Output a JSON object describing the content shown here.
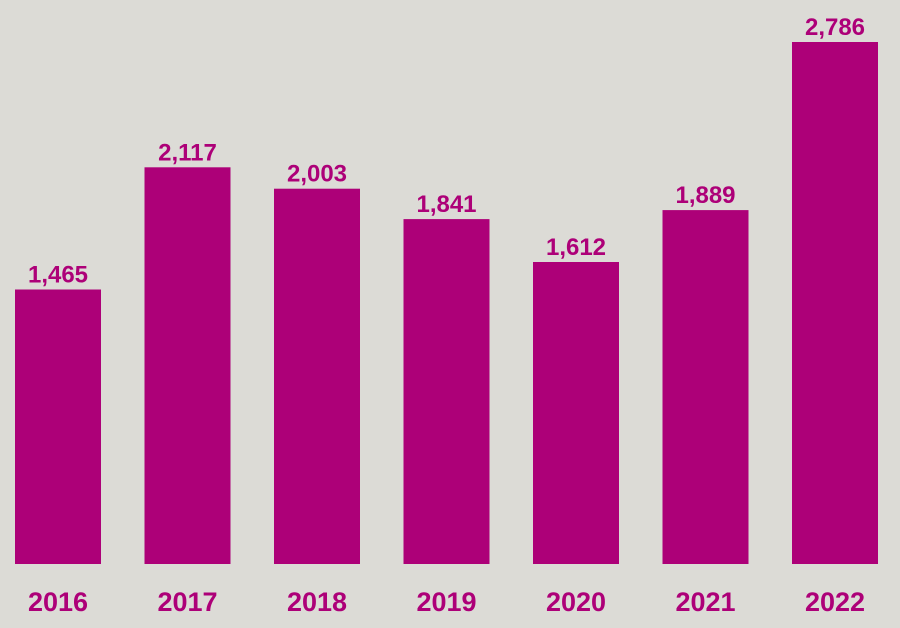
{
  "chart_data": {
    "type": "bar",
    "categories": [
      "2016",
      "2017",
      "2018",
      "2019",
      "2020",
      "2021",
      "2022"
    ],
    "values": [
      1465,
      2117,
      2003,
      1841,
      1612,
      1889,
      2786
    ],
    "value_labels": [
      "1,465",
      "2,117",
      "2,003",
      "1,841",
      "1,612",
      "1,889",
      "2,786"
    ],
    "title": "",
    "xlabel": "",
    "ylabel": "",
    "ylim": [
      0,
      2786
    ],
    "grid": false,
    "legend": "none"
  },
  "colors": {
    "background": "#dcdbd6",
    "bar": "#ad0078",
    "text": "#ad0078"
  }
}
